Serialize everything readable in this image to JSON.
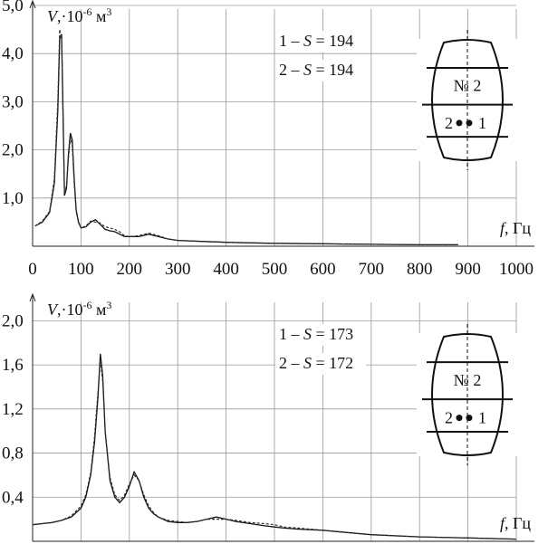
{
  "chart_data": [
    {
      "type": "line",
      "title": "",
      "ylabel": "V,·10^-6 м^3",
      "xlabel": "f, Гц",
      "xlim": [
        0,
        1000
      ],
      "ylim": [
        0,
        5.0
      ],
      "x_ticks": [
        "0",
        "100",
        "200",
        "300",
        "400",
        "500",
        "600",
        "700",
        "800",
        "900",
        "1000"
      ],
      "y_ticks": [
        "1,0",
        "2,0",
        "3,0",
        "4,0",
        "5,0"
      ],
      "legend": [
        "1 – S = 194",
        "2 – S = 194"
      ],
      "inset": {
        "label": "№ 2",
        "p1": "1",
        "p2": "2"
      },
      "series": [
        {
          "name": "1",
          "x": [
            5,
            20,
            35,
            45,
            52,
            56,
            60,
            63,
            66,
            70,
            74,
            78,
            82,
            86,
            90,
            95,
            100,
            110,
            120,
            130,
            140,
            150,
            160,
            170,
            180,
            190,
            200,
            220,
            240,
            260,
            280,
            300,
            350,
            400,
            450,
            500,
            600,
            700,
            800,
            880
          ],
          "values": [
            0.42,
            0.5,
            0.7,
            1.3,
            2.8,
            4.3,
            4.4,
            2.8,
            1.05,
            1.2,
            1.9,
            2.35,
            2.2,
            1.4,
            0.75,
            0.5,
            0.38,
            0.4,
            0.5,
            0.55,
            0.45,
            0.35,
            0.32,
            0.3,
            0.25,
            0.2,
            0.2,
            0.2,
            0.25,
            0.2,
            0.15,
            0.12,
            0.1,
            0.08,
            0.07,
            0.06,
            0.05,
            0.04,
            0.03,
            0.03
          ]
        },
        {
          "name": "2",
          "x": [
            5,
            20,
            35,
            45,
            52,
            56,
            60,
            63,
            66,
            70,
            74,
            78,
            82,
            86,
            90,
            95,
            100,
            110,
            120,
            130,
            140,
            150,
            160,
            170,
            180,
            190,
            200,
            220,
            240,
            260,
            280,
            300,
            350,
            400,
            450,
            500,
            600,
            700,
            800,
            880
          ],
          "values": [
            0.42,
            0.52,
            0.72,
            1.4,
            3.0,
            4.5,
            4.3,
            2.6,
            1.1,
            1.25,
            1.8,
            2.25,
            2.1,
            1.3,
            0.72,
            0.48,
            0.38,
            0.42,
            0.52,
            0.5,
            0.48,
            0.4,
            0.38,
            0.35,
            0.3,
            0.22,
            0.2,
            0.22,
            0.27,
            0.22,
            0.15,
            0.12,
            0.1,
            0.08,
            0.07,
            0.06,
            0.05,
            0.04,
            0.03,
            0.03
          ]
        }
      ]
    },
    {
      "type": "line",
      "title": "",
      "ylabel": "V,·10^-6 м^3",
      "xlabel": "f, Гц",
      "xlim": [
        0,
        1000
      ],
      "ylim": [
        0,
        2.2
      ],
      "x_ticks": [],
      "y_ticks": [
        "0,4",
        "0,8",
        "1,2",
        "1,6",
        "2,0"
      ],
      "legend": [
        "1 – S = 173",
        "2 – S = 172"
      ],
      "inset": {
        "label": "№ 2",
        "p1": "1",
        "p2": "2"
      },
      "series": [
        {
          "name": "1",
          "x": [
            0,
            20,
            40,
            60,
            80,
            100,
            110,
            120,
            128,
            135,
            140,
            145,
            150,
            160,
            170,
            180,
            190,
            200,
            210,
            220,
            230,
            240,
            250,
            260,
            280,
            300,
            320,
            340,
            360,
            380,
            400,
            420,
            450,
            480,
            500,
            520,
            550,
            600,
            650,
            700,
            800,
            900,
            1000
          ],
          "values": [
            0.15,
            0.16,
            0.17,
            0.19,
            0.22,
            0.3,
            0.4,
            0.6,
            0.9,
            1.3,
            1.7,
            1.5,
            1.0,
            0.55,
            0.4,
            0.35,
            0.4,
            0.5,
            0.63,
            0.55,
            0.4,
            0.3,
            0.25,
            0.22,
            0.18,
            0.17,
            0.17,
            0.18,
            0.2,
            0.22,
            0.2,
            0.18,
            0.16,
            0.14,
            0.13,
            0.12,
            0.11,
            0.1,
            0.08,
            0.06,
            0.04,
            0.03,
            0.02
          ]
        },
        {
          "name": "2",
          "x": [
            0,
            20,
            40,
            60,
            80,
            100,
            110,
            120,
            128,
            135,
            140,
            145,
            150,
            160,
            170,
            180,
            190,
            200,
            210,
            220,
            230,
            240,
            250,
            260,
            280,
            300,
            320,
            340,
            360,
            380,
            400,
            420,
            450,
            480,
            500,
            520,
            550,
            600,
            650,
            700,
            800,
            900,
            1000
          ],
          "values": [
            0.15,
            0.16,
            0.17,
            0.19,
            0.23,
            0.32,
            0.42,
            0.62,
            0.95,
            1.35,
            1.65,
            1.45,
            1.0,
            0.58,
            0.42,
            0.37,
            0.42,
            0.52,
            0.6,
            0.55,
            0.42,
            0.32,
            0.26,
            0.22,
            0.19,
            0.18,
            0.17,
            0.18,
            0.2,
            0.2,
            0.2,
            0.19,
            0.17,
            0.16,
            0.15,
            0.13,
            0.12,
            0.1,
            0.08,
            0.06,
            0.04,
            0.03,
            0.02
          ]
        }
      ]
    }
  ]
}
